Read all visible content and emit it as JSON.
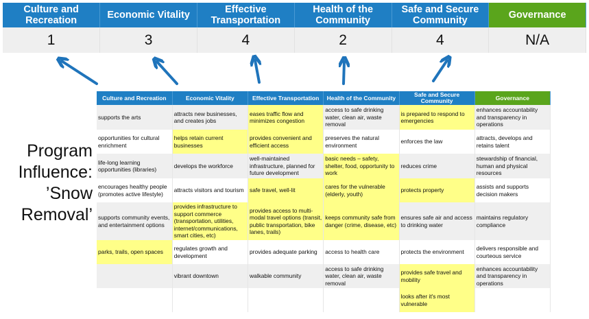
{
  "colors": {
    "header_blue": "#1f7fc4",
    "governance_green": "#5aa51c",
    "highlight": "#ffff88",
    "arrow": "#1f74bb"
  },
  "summary": {
    "columns": [
      {
        "label": "Culture and Recreation",
        "value": "1"
      },
      {
        "label": "Economic Vitality",
        "value": "3"
      },
      {
        "label": "Effective Transportation",
        "value": "4"
      },
      {
        "label": "Health of the Community",
        "value": "2"
      },
      {
        "label": "Safe and Secure Community",
        "value": "4"
      },
      {
        "label": "Governance",
        "value": "N/A"
      }
    ]
  },
  "title": {
    "lines": [
      "Program",
      "Influence:",
      "’Snow",
      "Removal’"
    ]
  },
  "detail": {
    "headers": [
      "Culture and Recreation",
      "Economic Vitality",
      "Effective Transportation",
      "Health of the Community",
      "Safe and Secure Community",
      "Governance"
    ],
    "rows": [
      [
        {
          "t": "supports the arts"
        },
        {
          "t": "attracts new businesses, and creates jobs"
        },
        {
          "t": "eases traffic flow and minimizes congestion",
          "h": true
        },
        {
          "t": "access to safe drinking water, clean air, waste removal"
        },
        {
          "t": "is prepared to respond to emergencies",
          "h": true
        },
        {
          "t": "enhances accountability and transparency in operations"
        }
      ],
      [
        {
          "t": "opportunities for cultural enrichment"
        },
        {
          "t": "helps retain current businesses",
          "h": true
        },
        {
          "t": "provides convenient and efficient access",
          "h": true
        },
        {
          "t": "preserves the natural environment"
        },
        {
          "t": "enforces the law"
        },
        {
          "t": "attracts, develops and retains talent"
        }
      ],
      [
        {
          "t": "life-long learning opportunities (libraries)"
        },
        {
          "t": "develops the workforce"
        },
        {
          "t": "well-maintained infrastructure, planned for future development"
        },
        {
          "t": "basic needs – safety, shelter, food, opportunity to work",
          "h": true
        },
        {
          "t": "reduces crime"
        },
        {
          "t": "stewardship of financial, human and physical resources"
        }
      ],
      [
        {
          "t": "encourages healthy people (promotes active lifestyle)"
        },
        {
          "t": "attracts visitors and tourism"
        },
        {
          "t": "safe travel, well-lit",
          "h": true
        },
        {
          "t": "cares for the vulnerable (elderly, youth)",
          "h": true
        },
        {
          "t": "protects property",
          "h": true
        },
        {
          "t": "assists and supports decision makers"
        }
      ],
      [
        {
          "t": "supports community events, and entertainment options"
        },
        {
          "t": "provides infrastructure to support commerce (transportation, utilities, internet/communications, smart cities, etc)",
          "h": true
        },
        {
          "t": "provides access to multi-modal travel options (transit, public transportation, bike lanes, trails)",
          "h": true
        },
        {
          "t": "keeps community safe from danger (crime, disease, etc)",
          "h": true
        },
        {
          "t": "ensures safe air and access to drinking water"
        },
        {
          "t": "maintains regulatory compliance"
        }
      ],
      [
        {
          "t": "parks, trails, open spaces",
          "h": true
        },
        {
          "t": "regulates growth and development"
        },
        {
          "t": "provides adequate parking"
        },
        {
          "t": "access to health care"
        },
        {
          "t": "protects the environment"
        },
        {
          "t": "delivers responsible and courteous service"
        }
      ],
      [
        {
          "t": ""
        },
        {
          "t": "vibrant downtown"
        },
        {
          "t": "walkable community"
        },
        {
          "t": "access to safe drinking water, clean air, waste removal"
        },
        {
          "t": "provides safe travel and mobility",
          "h": true
        },
        {
          "t": "enhances accountability and transparency in operations"
        }
      ],
      [
        {
          "t": ""
        },
        {
          "t": ""
        },
        {
          "t": ""
        },
        {
          "t": ""
        },
        {
          "t": "looks after it's most vulnerable",
          "h": true
        },
        {
          "t": ""
        }
      ]
    ]
  }
}
